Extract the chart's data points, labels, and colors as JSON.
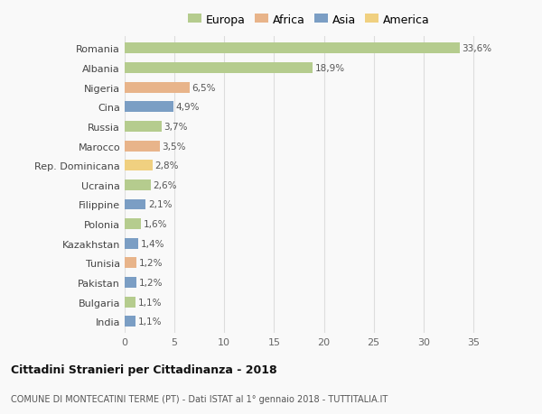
{
  "countries": [
    "Romania",
    "Albania",
    "Nigeria",
    "Cina",
    "Russia",
    "Marocco",
    "Rep. Dominicana",
    "Ucraina",
    "Filippine",
    "Polonia",
    "Kazakhstan",
    "Tunisia",
    "Pakistan",
    "Bulgaria",
    "India"
  ],
  "values": [
    33.6,
    18.9,
    6.5,
    4.9,
    3.7,
    3.5,
    2.8,
    2.6,
    2.1,
    1.6,
    1.4,
    1.2,
    1.2,
    1.1,
    1.1
  ],
  "labels": [
    "33,6%",
    "18,9%",
    "6,5%",
    "4,9%",
    "3,7%",
    "3,5%",
    "2,8%",
    "2,6%",
    "2,1%",
    "1,6%",
    "1,4%",
    "1,2%",
    "1,2%",
    "1,1%",
    "1,1%"
  ],
  "continents": [
    "Europa",
    "Europa",
    "Africa",
    "Asia",
    "Europa",
    "Africa",
    "America",
    "Europa",
    "Asia",
    "Europa",
    "Asia",
    "Africa",
    "Asia",
    "Europa",
    "Asia"
  ],
  "colors": {
    "Europa": "#b5cc8e",
    "Africa": "#e8b48a",
    "Asia": "#7b9ec4",
    "America": "#f0d080"
  },
  "legend_order": [
    "Europa",
    "Africa",
    "Asia",
    "America"
  ],
  "title": "Cittadini Stranieri per Cittadinanza - 2018",
  "subtitle": "COMUNE DI MONTECATINI TERME (PT) - Dati ISTAT al 1° gennaio 2018 - TUTTITALIA.IT",
  "xlim": [
    0,
    37
  ],
  "xticks": [
    0,
    5,
    10,
    15,
    20,
    25,
    30,
    35
  ],
  "background_color": "#f9f9f9",
  "grid_color": "#dddddd",
  "bar_height": 0.55
}
